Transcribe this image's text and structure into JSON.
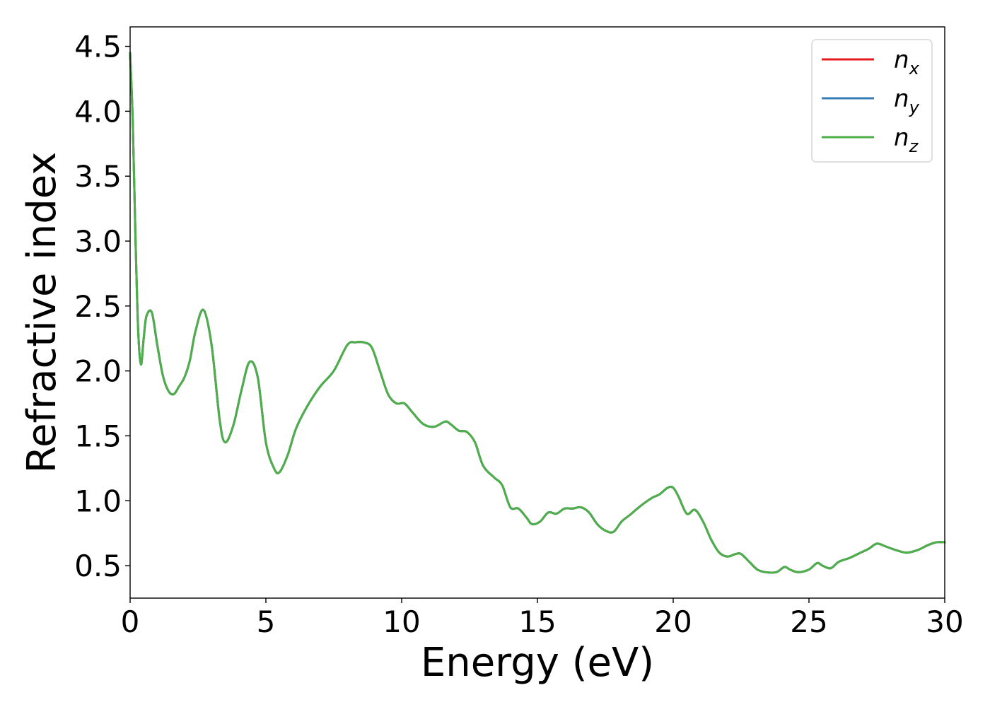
{
  "chart_data": {
    "type": "line",
    "title": "",
    "xlabel": "Energy (eV)",
    "ylabel": "Refractive index",
    "xlim": [
      0,
      30
    ],
    "ylim": [
      0.25,
      4.65
    ],
    "xticks": [
      0,
      5,
      10,
      15,
      20,
      25,
      30
    ],
    "xtick_labels": [
      "0",
      "5",
      "10",
      "15",
      "20",
      "25",
      "30"
    ],
    "yticks": [
      0.5,
      1.0,
      1.5,
      2.0,
      2.5,
      3.0,
      3.5,
      4.0,
      4.5
    ],
    "ytick_labels": [
      "0.5",
      "1.0",
      "1.5",
      "2.0",
      "2.5",
      "3.0",
      "3.5",
      "4.0",
      "4.5"
    ],
    "grid": false,
    "legend": {
      "placement": "top-right"
    },
    "x": [
      0,
      0.1,
      0.2,
      0.3,
      0.4,
      0.5,
      0.6,
      0.8,
      1.0,
      1.2,
      1.4,
      1.6,
      1.8,
      2.0,
      2.2,
      2.4,
      2.7,
      3.0,
      3.3,
      3.5,
      3.8,
      4.1,
      4.4,
      4.7,
      5.0,
      5.3,
      5.5,
      5.8,
      6.1,
      6.5,
      7.0,
      7.5,
      8.0,
      8.3,
      8.6,
      8.9,
      9.2,
      9.5,
      9.8,
      10.1,
      10.4,
      10.8,
      11.2,
      11.6,
      11.8,
      12.1,
      12.4,
      12.7,
      13.0,
      13.4,
      13.7,
      14.0,
      14.3,
      14.6,
      14.8,
      15.1,
      15.4,
      15.7,
      16.0,
      16.3,
      16.6,
      16.9,
      17.2,
      17.5,
      17.8,
      18.1,
      18.4,
      18.8,
      19.2,
      19.5,
      19.8,
      20.0,
      20.2,
      20.5,
      20.8,
      21.1,
      21.4,
      21.7,
      22.0,
      22.3,
      22.5,
      22.8,
      23.1,
      23.4,
      23.8,
      24.1,
      24.3,
      24.6,
      25.0,
      25.3,
      25.5,
      25.8,
      26.1,
      26.5,
      26.9,
      27.2,
      27.5,
      27.8,
      28.2,
      28.6,
      29.0,
      29.4,
      29.7,
      30.0
    ],
    "series": [
      {
        "name": "n_x",
        "color": "#e41a1c",
        "values": [
          4.45,
          3.9,
          3.0,
          2.3,
          2.05,
          2.25,
          2.42,
          2.45,
          2.2,
          1.97,
          1.85,
          1.82,
          1.88,
          1.95,
          2.08,
          2.3,
          2.47,
          2.2,
          1.62,
          1.45,
          1.58,
          1.85,
          2.07,
          1.95,
          1.45,
          1.25,
          1.22,
          1.35,
          1.55,
          1.72,
          1.88,
          2.0,
          2.2,
          2.22,
          2.22,
          2.18,
          2.0,
          1.82,
          1.75,
          1.75,
          1.68,
          1.59,
          1.57,
          1.61,
          1.59,
          1.54,
          1.53,
          1.45,
          1.27,
          1.18,
          1.12,
          0.95,
          0.94,
          0.87,
          0.82,
          0.84,
          0.91,
          0.9,
          0.94,
          0.94,
          0.95,
          0.91,
          0.82,
          0.77,
          0.76,
          0.84,
          0.89,
          0.96,
          1.02,
          1.05,
          1.1,
          1.1,
          1.03,
          0.9,
          0.93,
          0.84,
          0.7,
          0.6,
          0.57,
          0.59,
          0.59,
          0.53,
          0.47,
          0.45,
          0.45,
          0.49,
          0.47,
          0.45,
          0.47,
          0.52,
          0.5,
          0.48,
          0.53,
          0.56,
          0.6,
          0.63,
          0.67,
          0.65,
          0.62,
          0.6,
          0.62,
          0.66,
          0.68,
          0.68
        ]
      },
      {
        "name": "n_y",
        "color": "#377eb8",
        "values": [
          4.45,
          3.9,
          3.0,
          2.3,
          2.05,
          2.25,
          2.42,
          2.45,
          2.2,
          1.97,
          1.85,
          1.82,
          1.88,
          1.95,
          2.08,
          2.3,
          2.47,
          2.2,
          1.62,
          1.45,
          1.58,
          1.85,
          2.07,
          1.95,
          1.45,
          1.25,
          1.22,
          1.35,
          1.55,
          1.72,
          1.88,
          2.0,
          2.2,
          2.22,
          2.22,
          2.18,
          2.0,
          1.82,
          1.75,
          1.75,
          1.68,
          1.59,
          1.57,
          1.61,
          1.59,
          1.54,
          1.53,
          1.45,
          1.27,
          1.18,
          1.12,
          0.95,
          0.94,
          0.87,
          0.82,
          0.84,
          0.91,
          0.9,
          0.94,
          0.94,
          0.95,
          0.91,
          0.82,
          0.77,
          0.76,
          0.84,
          0.89,
          0.96,
          1.02,
          1.05,
          1.1,
          1.1,
          1.03,
          0.9,
          0.93,
          0.84,
          0.7,
          0.6,
          0.57,
          0.59,
          0.59,
          0.53,
          0.47,
          0.45,
          0.45,
          0.49,
          0.47,
          0.45,
          0.47,
          0.52,
          0.5,
          0.48,
          0.53,
          0.56,
          0.6,
          0.63,
          0.67,
          0.65,
          0.62,
          0.6,
          0.62,
          0.66,
          0.68,
          0.68
        ]
      },
      {
        "name": "n_z",
        "color": "#4daf4a",
        "values": [
          4.45,
          3.9,
          3.0,
          2.3,
          2.05,
          2.25,
          2.42,
          2.45,
          2.2,
          1.97,
          1.85,
          1.82,
          1.88,
          1.95,
          2.08,
          2.3,
          2.47,
          2.2,
          1.62,
          1.45,
          1.58,
          1.85,
          2.07,
          1.95,
          1.45,
          1.25,
          1.22,
          1.35,
          1.55,
          1.72,
          1.88,
          2.0,
          2.2,
          2.22,
          2.22,
          2.18,
          2.0,
          1.82,
          1.75,
          1.75,
          1.68,
          1.59,
          1.57,
          1.61,
          1.59,
          1.54,
          1.53,
          1.45,
          1.27,
          1.18,
          1.12,
          0.95,
          0.94,
          0.87,
          0.82,
          0.84,
          0.91,
          0.9,
          0.94,
          0.94,
          0.95,
          0.91,
          0.82,
          0.77,
          0.76,
          0.84,
          0.89,
          0.96,
          1.02,
          1.05,
          1.1,
          1.1,
          1.03,
          0.9,
          0.93,
          0.84,
          0.7,
          0.6,
          0.57,
          0.59,
          0.59,
          0.53,
          0.47,
          0.45,
          0.45,
          0.49,
          0.47,
          0.45,
          0.47,
          0.52,
          0.5,
          0.48,
          0.53,
          0.56,
          0.6,
          0.63,
          0.67,
          0.65,
          0.62,
          0.6,
          0.62,
          0.66,
          0.68,
          0.68
        ]
      }
    ]
  },
  "legend_labels": [
    {
      "base": "n",
      "sub": "x"
    },
    {
      "base": "n",
      "sub": "y"
    },
    {
      "base": "n",
      "sub": "z"
    }
  ]
}
